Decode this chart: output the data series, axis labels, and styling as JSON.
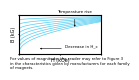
{
  "background_color": "#ffffff",
  "curve_color": "#40c8f0",
  "curve_linewidth": 0.5,
  "n_curves": 8,
  "xlabel": "H (kOe)",
  "ylabel": "B (kG)",
  "temp_arrow_label": "Temperature rise",
  "hc_arrow_label": "Decrease in H_c",
  "caption_line1": "For values of magnitude, the reader may refer to Figure 3",
  "caption_line2": "in the characteristics given by manufacturers for each family",
  "caption_line3": "of magnets.",
  "caption_fontsize": 2.8,
  "axis_label_fontsize": 3.5,
  "annotation_fontsize": 3.0,
  "tick_fontsize": 2.5
}
